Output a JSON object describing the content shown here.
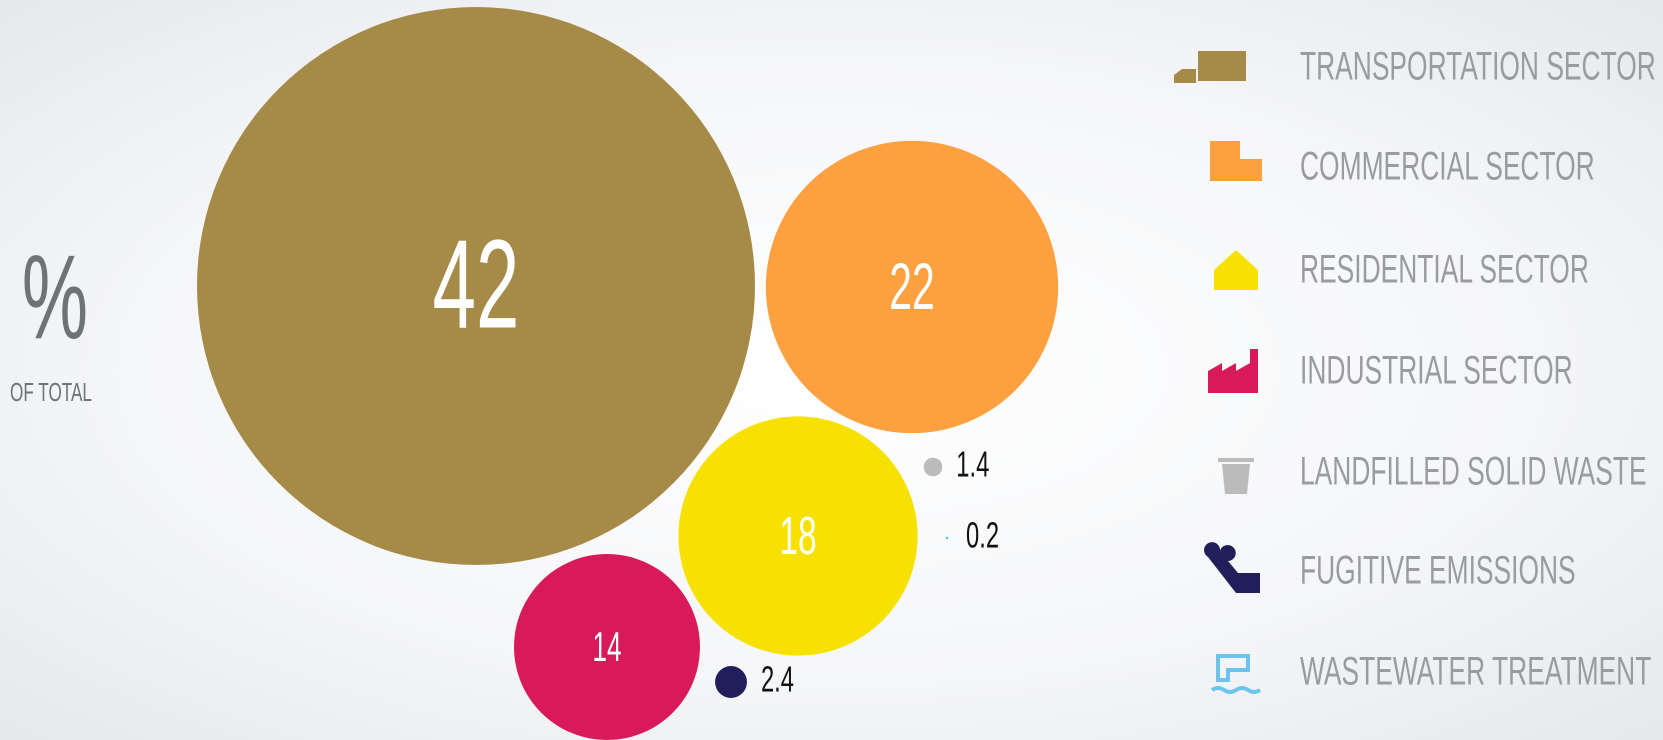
{
  "chart_data": {
    "type": "bubble",
    "axis_symbol": "%",
    "axis_label": "OF TOTAL",
    "series": [
      {
        "name": "TRANSPORTATION SECTOR",
        "color": "#a68a47",
        "value": 42
      },
      {
        "name": "COMMERCIAL SECTOR",
        "color": "#fca040",
        "value": 22
      },
      {
        "name": "RESIDENTIAL SECTOR",
        "color": "#f7e100",
        "value": 18
      },
      {
        "name": "INDUSTRIAL SECTOR",
        "color": "#d91a5a",
        "value": 14
      },
      {
        "name": "LANDFILLED SOLID WASTE",
        "color": "#bbbbbb",
        "value": 1.4
      },
      {
        "name": "FUGITIVE EMISSIONS",
        "color": "#201f5a",
        "value": 2.4
      },
      {
        "name": "WASTEWATER TREATMENT",
        "color": "#6cc4ee",
        "value": 0.2
      }
    ]
  }
}
